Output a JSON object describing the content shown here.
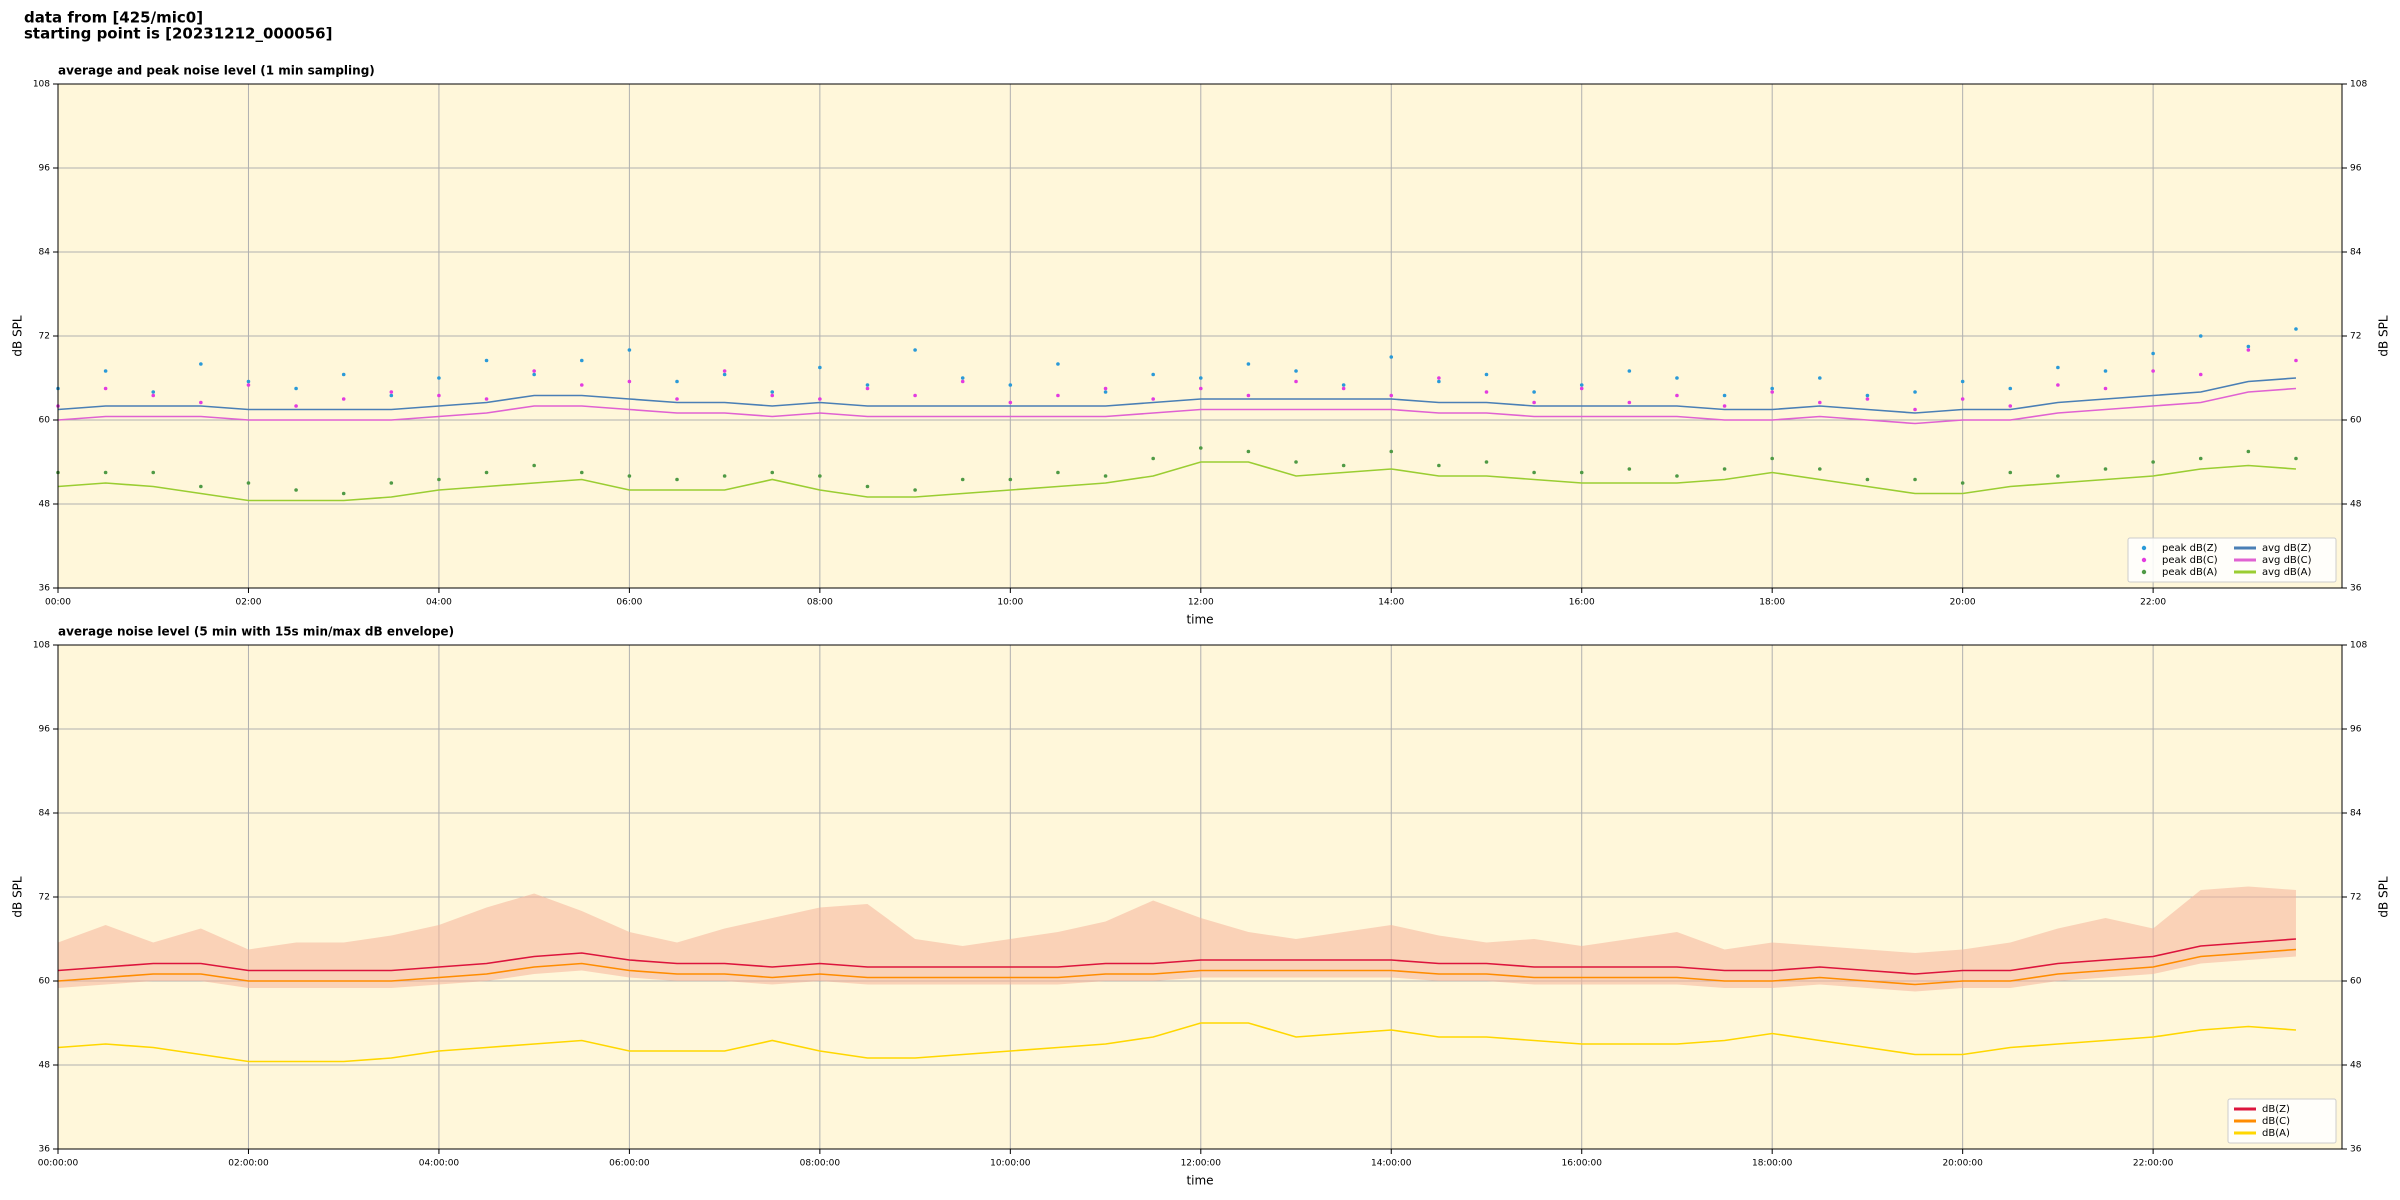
{
  "header": {
    "lines": [
      "data from [425/mic0]",
      "starting point is [20231212_000056]"
    ]
  },
  "chart_data": [
    {
      "type": "line",
      "title": "average and peak noise level (1 min sampling)",
      "xlabel": "time",
      "ylabel": "dB SPL",
      "x": [
        "00:00",
        "00:30",
        "01:00",
        "01:30",
        "02:00",
        "02:30",
        "03:00",
        "03:30",
        "04:00",
        "04:30",
        "05:00",
        "05:30",
        "06:00",
        "06:30",
        "07:00",
        "07:30",
        "08:00",
        "08:30",
        "09:00",
        "09:30",
        "10:00",
        "10:30",
        "11:00",
        "11:30",
        "12:00",
        "12:30",
        "13:00",
        "13:30",
        "14:00",
        "14:30",
        "15:00",
        "15:30",
        "16:00",
        "16:30",
        "17:00",
        "17:30",
        "18:00",
        "18:30",
        "19:00",
        "19:30",
        "20:00",
        "20:30",
        "21:00",
        "21:30",
        "22:00",
        "22:30",
        "23:00",
        "23:30"
      ],
      "xlim": [
        "00:00",
        "23:59"
      ],
      "xticks": [
        "00:00",
        "02:00",
        "04:00",
        "06:00",
        "08:00",
        "10:00",
        "12:00",
        "14:00",
        "16:00",
        "18:00",
        "20:00",
        "22:00"
      ],
      "ylim": [
        36,
        108
      ],
      "yticks": [
        36,
        48,
        60,
        72,
        84,
        96,
        108
      ],
      "grid": true,
      "legend": "lower right",
      "legend_columns": 2,
      "series": [
        {
          "name": "peak dB(Z)",
          "type": "scatter",
          "color": "#2a9ad8",
          "values": [
            64.5,
            67,
            64,
            68,
            65.5,
            64.5,
            66.5,
            63.5,
            66,
            68.5,
            66.5,
            68.5,
            70,
            65.5,
            66.5,
            64,
            67.5,
            65,
            70,
            66,
            65,
            68,
            64,
            66.5,
            66,
            68,
            67,
            65,
            69,
            65.5,
            66.5,
            64,
            65,
            67,
            66,
            63.5,
            64.5,
            66,
            63.5,
            64,
            65.5,
            64.5,
            67.5,
            67,
            69.5,
            72,
            70.5,
            73
          ]
        },
        {
          "name": "peak dB(C)",
          "type": "scatter",
          "color": "#e33be0",
          "values": [
            62,
            64.5,
            63.5,
            62.5,
            65,
            62,
            63,
            64,
            63.5,
            63,
            67,
            65,
            65.5,
            63,
            67,
            63.5,
            63,
            64.5,
            63.5,
            65.5,
            62.5,
            63.5,
            64.5,
            63,
            64.5,
            63.5,
            65.5,
            64.5,
            63.5,
            66,
            64,
            62.5,
            64.5,
            62.5,
            63.5,
            62,
            64,
            62.5,
            63,
            61.5,
            63,
            62,
            65,
            64.5,
            67,
            66.5,
            70,
            68.5
          ]
        },
        {
          "name": "peak dB(A)",
          "type": "scatter",
          "color": "#4f9a45",
          "values": [
            52.5,
            52.5,
            52.5,
            50.5,
            51,
            50,
            49.5,
            51,
            51.5,
            52.5,
            53.5,
            52.5,
            52,
            51.5,
            52,
            52.5,
            52,
            50.5,
            50,
            51.5,
            51.5,
            52.5,
            52,
            54.5,
            56,
            55.5,
            54,
            53.5,
            55.5,
            53.5,
            54,
            52.5,
            52.5,
            53,
            52,
            53,
            54.5,
            53,
            51.5,
            51.5,
            51,
            52.5,
            52,
            53,
            54,
            54.5,
            55.5,
            54.5
          ]
        },
        {
          "name": "avg dB(Z)",
          "type": "line",
          "color": "#4a7fb5",
          "values": [
            61.5,
            62,
            62,
            62,
            61.5,
            61.5,
            61.5,
            61.5,
            62,
            62.5,
            63.5,
            63.5,
            63,
            62.5,
            62.5,
            62,
            62.5,
            62,
            62,
            62,
            62,
            62,
            62,
            62.5,
            63,
            63,
            63,
            63,
            63,
            62.5,
            62.5,
            62,
            62,
            62,
            62,
            61.5,
            61.5,
            62,
            61.5,
            61,
            61.5,
            61.5,
            62.5,
            63,
            63.5,
            64,
            65.5,
            66
          ]
        },
        {
          "name": "avg dB(C)",
          "type": "line",
          "color": "#e062d2",
          "values": [
            60,
            60.5,
            60.5,
            60.5,
            60,
            60,
            60,
            60,
            60.5,
            61,
            62,
            62,
            61.5,
            61,
            61,
            60.5,
            61,
            60.5,
            60.5,
            60.5,
            60.5,
            60.5,
            60.5,
            61,
            61.5,
            61.5,
            61.5,
            61.5,
            61.5,
            61,
            61,
            60.5,
            60.5,
            60.5,
            60.5,
            60,
            60,
            60.5,
            60,
            59.5,
            60,
            60,
            61,
            61.5,
            62,
            62.5,
            64,
            64.5
          ]
        },
        {
          "name": "avg dB(A)",
          "type": "line",
          "color": "#9acd32",
          "values": [
            50.5,
            51,
            50.5,
            49.5,
            48.5,
            48.5,
            48.5,
            49,
            50,
            50.5,
            51,
            51.5,
            50,
            50,
            50,
            51.5,
            50,
            49,
            49,
            49.5,
            50,
            50.5,
            51,
            52,
            54,
            54,
            52,
            52.5,
            53,
            52,
            52,
            51.5,
            51,
            51,
            51,
            51.5,
            52.5,
            51.5,
            50.5,
            49.5,
            49.5,
            50.5,
            51,
            51.5,
            52,
            53,
            53.5,
            53
          ]
        }
      ]
    },
    {
      "type": "line",
      "title": "average noise level (5 min with 15s min/max dB envelope)",
      "xlabel": "time",
      "ylabel": "dB SPL",
      "x": [
        "00:00:00",
        "00:30:00",
        "01:00:00",
        "01:30:00",
        "02:00:00",
        "02:30:00",
        "03:00:00",
        "03:30:00",
        "04:00:00",
        "04:30:00",
        "05:00:00",
        "05:30:00",
        "06:00:00",
        "06:30:00",
        "07:00:00",
        "07:30:00",
        "08:00:00",
        "08:30:00",
        "09:00:00",
        "09:30:00",
        "10:00:00",
        "10:30:00",
        "11:00:00",
        "11:30:00",
        "12:00:00",
        "12:30:00",
        "13:00:00",
        "13:30:00",
        "14:00:00",
        "14:30:00",
        "15:00:00",
        "15:30:00",
        "16:00:00",
        "16:30:00",
        "17:00:00",
        "17:30:00",
        "18:00:00",
        "18:30:00",
        "19:00:00",
        "19:30:00",
        "20:00:00",
        "20:30:00",
        "21:00:00",
        "21:30:00",
        "22:00:00",
        "22:30:00",
        "23:00:00",
        "23:30:00"
      ],
      "xlim": [
        "00:00:00",
        "23:59:00"
      ],
      "xticks": [
        "00:00:00",
        "02:00:00",
        "04:00:00",
        "06:00:00",
        "08:00:00",
        "10:00:00",
        "12:00:00",
        "14:00:00",
        "16:00:00",
        "18:00:00",
        "20:00:00",
        "22:00:00"
      ],
      "ylim": [
        36,
        108
      ],
      "yticks": [
        36,
        48,
        60,
        72,
        84,
        96,
        108
      ],
      "grid": true,
      "legend": "lower right",
      "legend_columns": 1,
      "band": {
        "color": "#f5b49a",
        "lower": [
          59,
          59.5,
          60,
          60,
          59,
          59,
          59,
          59,
          59.5,
          60,
          61,
          61.5,
          60.5,
          60,
          60,
          59.5,
          60,
          59.5,
          59.5,
          59.5,
          59.5,
          59.5,
          60,
          60,
          60.5,
          60.5,
          60.5,
          60.5,
          60.5,
          60,
          60,
          59.5,
          59.5,
          59.5,
          59.5,
          59,
          59,
          59.5,
          59,
          58.5,
          59,
          59,
          60,
          60.5,
          61,
          62.5,
          63,
          63.5
        ],
        "upper": [
          65.5,
          68,
          65.5,
          67.5,
          64.5,
          65.5,
          65.5,
          66.5,
          68,
          70.5,
          72.5,
          70,
          67,
          65.5,
          67.5,
          69,
          70.5,
          71,
          66,
          65,
          66,
          67,
          68.5,
          71.5,
          69,
          67,
          66,
          67,
          68,
          66.5,
          65.5,
          66,
          65,
          66,
          67,
          64.5,
          65.5,
          65,
          64.5,
          64,
          64.5,
          65.5,
          67.5,
          69,
          67.5,
          73,
          73.5,
          73
        ]
      },
      "series": [
        {
          "name": "dB(Z)",
          "type": "line",
          "color": "#dc143c",
          "values": [
            61.5,
            62,
            62.5,
            62.5,
            61.5,
            61.5,
            61.5,
            61.5,
            62,
            62.5,
            63.5,
            64,
            63,
            62.5,
            62.5,
            62,
            62.5,
            62,
            62,
            62,
            62,
            62,
            62.5,
            62.5,
            63,
            63,
            63,
            63,
            63,
            62.5,
            62.5,
            62,
            62,
            62,
            62,
            61.5,
            61.5,
            62,
            61.5,
            61,
            61.5,
            61.5,
            62.5,
            63,
            63.5,
            65,
            65.5,
            66
          ]
        },
        {
          "name": "dB(C)",
          "type": "line",
          "color": "#ff8c00",
          "values": [
            60,
            60.5,
            61,
            61,
            60,
            60,
            60,
            60,
            60.5,
            61,
            62,
            62.5,
            61.5,
            61,
            61,
            60.5,
            61,
            60.5,
            60.5,
            60.5,
            60.5,
            60.5,
            61,
            61,
            61.5,
            61.5,
            61.5,
            61.5,
            61.5,
            61,
            61,
            60.5,
            60.5,
            60.5,
            60.5,
            60,
            60,
            60.5,
            60,
            59.5,
            60,
            60,
            61,
            61.5,
            62,
            63.5,
            64,
            64.5
          ]
        },
        {
          "name": "dB(A)",
          "type": "line",
          "color": "#ffd700",
          "values": [
            50.5,
            51,
            50.5,
            49.5,
            48.5,
            48.5,
            48.5,
            49,
            50,
            50.5,
            51,
            51.5,
            50,
            50,
            50,
            51.5,
            50,
            49,
            49,
            49.5,
            50,
            50.5,
            51,
            52,
            54,
            54,
            52,
            52.5,
            53,
            52,
            52,
            51.5,
            51,
            51,
            51,
            51.5,
            52.5,
            51.5,
            50.5,
            49.5,
            49.5,
            50.5,
            51,
            51.5,
            52,
            53,
            53.5,
            53
          ]
        }
      ]
    }
  ]
}
